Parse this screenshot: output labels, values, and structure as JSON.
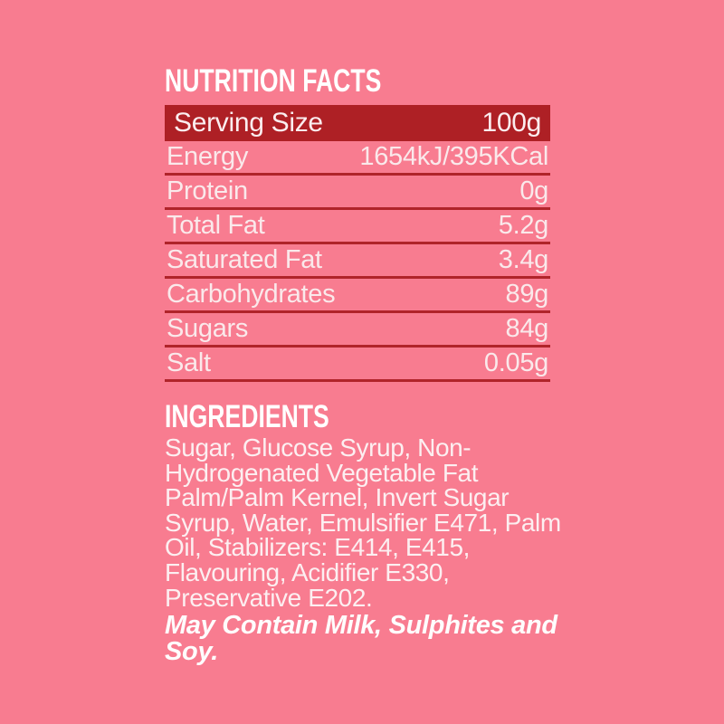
{
  "colors": {
    "background": "#F87C90",
    "serving_bar": "#AE2025",
    "divider": "#B0242A",
    "heading_text": "#FFFFFF",
    "row_text": "#FAE9EB"
  },
  "nutrition": {
    "title": "NUTRITION FACTS",
    "rows": [
      {
        "label": "Serving Size",
        "value": "100g"
      },
      {
        "label": "Energy",
        "value": "1654kJ/395KCal"
      },
      {
        "label": "Protein",
        "value": "0g"
      },
      {
        "label": "Total Fat",
        "value": "5.2g"
      },
      {
        "label": "Saturated Fat",
        "value": "3.4g"
      },
      {
        "label": "Carbohydrates",
        "value": "89g"
      },
      {
        "label": "Sugars",
        "value": "84g"
      },
      {
        "label": "Salt",
        "value": "0.05g"
      }
    ]
  },
  "ingredients": {
    "title": "INGREDIENTS",
    "text": "Sugar, Glucose Syrup, Non-Hydrogenated Vegetable Fat Palm/Palm Kernel, Invert Sugar Syrup, Water, Emulsifier E471, Palm Oil, Stabilizers: E414, E415, Flavouring, Acidifier E330, Preservative E202.",
    "allergen": "May Contain Milk, Sulphites and Soy."
  }
}
